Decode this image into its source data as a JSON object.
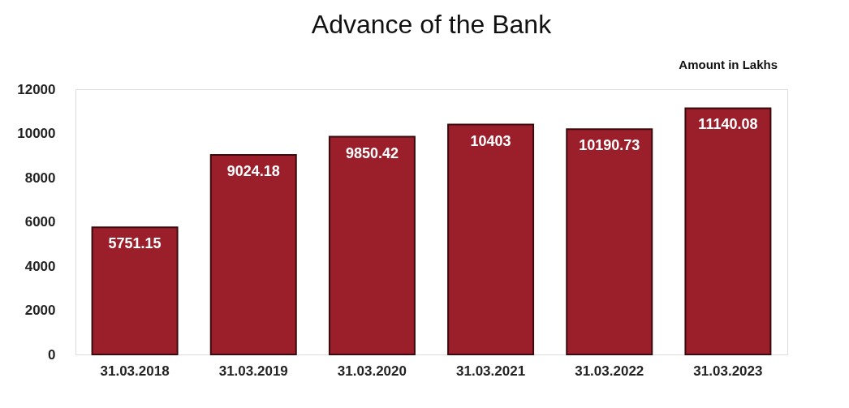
{
  "chart_data": {
    "type": "bar",
    "title": "Advance of the Bank",
    "annotations": [
      "Amount in Lakhs"
    ],
    "categories": [
      "31.03.2018",
      "31.03.2019",
      "31.03.2020",
      "31.03.2021",
      "31.03.2022",
      "31.03.2023"
    ],
    "values": [
      5751.15,
      9024.18,
      9850.42,
      10403,
      10190.73,
      11140.08
    ],
    "color": "#9b1f2a",
    "ylim": [
      0,
      12000
    ],
    "yticks": [
      0,
      2000,
      4000,
      6000,
      8000,
      10000,
      12000
    ],
    "grid": false,
    "data_labels": true
  }
}
